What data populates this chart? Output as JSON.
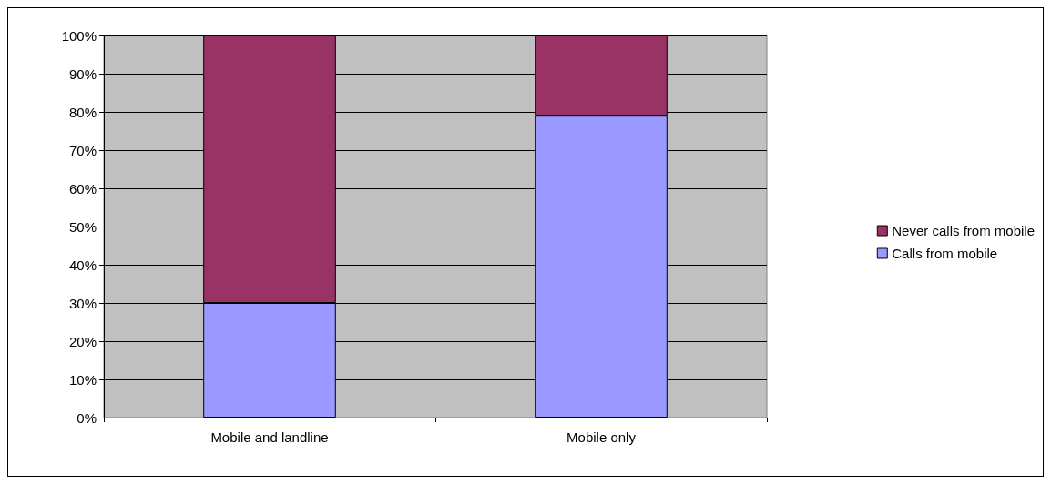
{
  "chart_data": {
    "type": "bar",
    "stacked": true,
    "categories": [
      "Mobile and landline",
      "Mobile only"
    ],
    "series": [
      {
        "name": "Calls from mobile",
        "color": "#9999ff",
        "values": [
          30,
          79
        ]
      },
      {
        "name": "Never calls from mobile",
        "color": "#993366",
        "values": [
          70,
          21
        ]
      }
    ],
    "ylim": [
      0,
      100
    ],
    "yticks": [
      {
        "value": 0,
        "label": "0%"
      },
      {
        "value": 10,
        "label": "10%"
      },
      {
        "value": 20,
        "label": "20%"
      },
      {
        "value": 30,
        "label": "30%"
      },
      {
        "value": 40,
        "label": "40%"
      },
      {
        "value": 50,
        "label": "50%"
      },
      {
        "value": 60,
        "label": "60%"
      },
      {
        "value": 70,
        "label": "70%"
      },
      {
        "value": 80,
        "label": "80%"
      },
      {
        "value": 90,
        "label": "90%"
      },
      {
        "value": 100,
        "label": "100%"
      }
    ],
    "grid": "y",
    "legend": "right"
  }
}
